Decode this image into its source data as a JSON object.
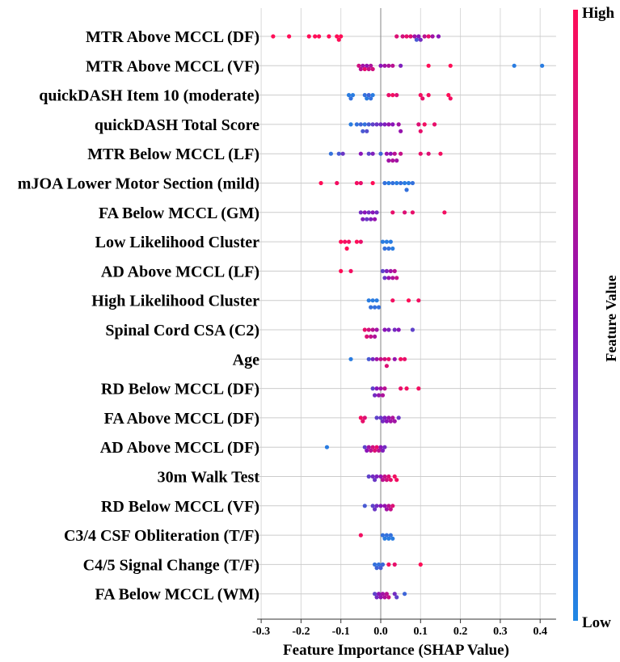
{
  "chart_data": {
    "type": "scatter",
    "subtype": "shap-beeswarm",
    "xlabel": "Feature Importance (SHAP Value)",
    "xlim": [
      -0.31,
      0.44
    ],
    "xticks": [
      -0.3,
      -0.2,
      -0.1,
      0.0,
      0.1,
      0.2,
      0.3,
      0.4
    ],
    "xtick_labels": [
      "-0.3",
      "-0.2",
      "-0.1",
      "0.0",
      "0.1",
      "0.2",
      "0.3",
      "0.4"
    ],
    "grid": true,
    "colorbar": {
      "label": "Feature Value",
      "high_label": "High",
      "low_label": "Low",
      "colors": {
        "high": "#ff0d57",
        "mid": "#8a14b8",
        "low": "#1e88e5"
      }
    },
    "features": [
      {
        "name": "MTR Above MCCL (DF)",
        "points": [
          [
            -0.27,
            1
          ],
          [
            -0.23,
            1
          ],
          [
            -0.18,
            1
          ],
          [
            -0.165,
            1
          ],
          [
            -0.155,
            1
          ],
          [
            -0.13,
            1
          ],
          [
            -0.11,
            1
          ],
          [
            -0.105,
            1
          ],
          [
            -0.1,
            1
          ],
          [
            0.04,
            0.85
          ],
          [
            0.055,
            0.8
          ],
          [
            0.065,
            0.9
          ],
          [
            0.075,
            0.85
          ],
          [
            0.085,
            0.6
          ],
          [
            0.09,
            0.2
          ],
          [
            0.095,
            0.5
          ],
          [
            0.1,
            0.4
          ],
          [
            0.11,
            0.7
          ],
          [
            0.12,
            0.9
          ],
          [
            0.13,
            0.6
          ],
          [
            0.145,
            0.5
          ]
        ]
      },
      {
        "name": "MTR Above MCCL (VF)",
        "points": [
          [
            -0.055,
            0.8
          ],
          [
            -0.05,
            0.7
          ],
          [
            -0.045,
            0.6
          ],
          [
            -0.04,
            0.9
          ],
          [
            -0.035,
            0.55
          ],
          [
            -0.03,
            0.75
          ],
          [
            -0.025,
            0.65
          ],
          [
            -0.02,
            0.8
          ],
          [
            0.0,
            0.5
          ],
          [
            0.01,
            0.6
          ],
          [
            0.02,
            0.65
          ],
          [
            0.03,
            0.7
          ],
          [
            0.05,
            0.45
          ],
          [
            0.12,
            1
          ],
          [
            0.175,
            1
          ],
          [
            0.335,
            0.05
          ],
          [
            0.405,
            0.05
          ]
        ]
      },
      {
        "name": "quickDASH Item 10 (moderate)",
        "points": [
          [
            -0.08,
            0.05
          ],
          [
            -0.075,
            0.1
          ],
          [
            -0.07,
            0.05
          ],
          [
            -0.04,
            0.1
          ],
          [
            -0.035,
            0.05
          ],
          [
            -0.03,
            0.15
          ],
          [
            -0.025,
            0.1
          ],
          [
            -0.02,
            0.05
          ],
          [
            0.02,
            0.9
          ],
          [
            0.03,
            0.95
          ],
          [
            0.04,
            0.85
          ],
          [
            0.1,
            0.95
          ],
          [
            0.105,
            0.9
          ],
          [
            0.12,
            0.95
          ],
          [
            0.17,
            1
          ],
          [
            0.175,
            0.95
          ]
        ]
      },
      {
        "name": "quickDASH Total Score",
        "points": [
          [
            -0.075,
            0.05
          ],
          [
            -0.06,
            0.1
          ],
          [
            -0.05,
            0.15
          ],
          [
            -0.045,
            0.2
          ],
          [
            -0.04,
            0.1
          ],
          [
            -0.035,
            0.25
          ],
          [
            -0.03,
            0.2
          ],
          [
            -0.02,
            0.3
          ],
          [
            -0.01,
            0.35
          ],
          [
            0.0,
            0.4
          ],
          [
            0.01,
            0.45
          ],
          [
            0.02,
            0.55
          ],
          [
            0.03,
            0.5
          ],
          [
            0.045,
            0.6
          ],
          [
            0.05,
            0.55
          ],
          [
            0.095,
            0.85
          ],
          [
            0.1,
            0.9
          ],
          [
            0.11,
            0.95
          ],
          [
            0.135,
            0.9
          ]
        ]
      },
      {
        "name": "MTR Below MCCL (LF)",
        "points": [
          [
            -0.125,
            0.1
          ],
          [
            -0.105,
            0.2
          ],
          [
            -0.095,
            0.35
          ],
          [
            -0.05,
            0.5
          ],
          [
            -0.03,
            0.3
          ],
          [
            -0.02,
            0.45
          ],
          [
            0.0,
            0.15
          ],
          [
            0.015,
            0.55
          ],
          [
            0.02,
            0.6
          ],
          [
            0.025,
            0.5
          ],
          [
            0.03,
            0.65
          ],
          [
            0.035,
            0.7
          ],
          [
            0.04,
            0.6
          ],
          [
            0.05,
            0.75
          ],
          [
            0.1,
            0.9
          ],
          [
            0.12,
            0.85
          ],
          [
            0.15,
            0.95
          ]
        ]
      },
      {
        "name": "mJOA Lower Motor Section (mild)",
        "points": [
          [
            -0.15,
            1
          ],
          [
            -0.11,
            0.95
          ],
          [
            -0.06,
            0.95
          ],
          [
            -0.05,
            0.9
          ],
          [
            -0.02,
            1
          ],
          [
            0.01,
            0.1
          ],
          [
            0.02,
            0.05
          ],
          [
            0.03,
            0.1
          ],
          [
            0.04,
            0.05
          ],
          [
            0.05,
            0.1
          ],
          [
            0.06,
            0.05
          ],
          [
            0.065,
            0.1
          ],
          [
            0.07,
            0.05
          ],
          [
            0.08,
            0.1
          ]
        ]
      },
      {
        "name": "FA Below MCCL (GM)",
        "points": [
          [
            -0.05,
            0.4
          ],
          [
            -0.045,
            0.45
          ],
          [
            -0.04,
            0.5
          ],
          [
            -0.035,
            0.35
          ],
          [
            -0.03,
            0.4
          ],
          [
            -0.025,
            0.45
          ],
          [
            -0.02,
            0.5
          ],
          [
            -0.015,
            0.55
          ],
          [
            -0.01,
            0.4
          ],
          [
            0.03,
            0.9
          ],
          [
            0.06,
            0.85
          ],
          [
            0.08,
            0.9
          ],
          [
            0.16,
            0.95
          ]
        ]
      },
      {
        "name": "Low Likelihood Cluster",
        "points": [
          [
            -0.1,
            1
          ],
          [
            -0.09,
            0.95
          ],
          [
            -0.085,
            1
          ],
          [
            -0.08,
            0.95
          ],
          [
            -0.06,
            1
          ],
          [
            -0.05,
            0.9
          ],
          [
            0.005,
            0.05
          ],
          [
            0.01,
            0.1
          ],
          [
            0.015,
            0.05
          ],
          [
            0.02,
            0.1
          ],
          [
            0.025,
            0.05
          ],
          [
            0.03,
            0.05
          ]
        ]
      },
      {
        "name": "AD Above MCCL (LF)",
        "points": [
          [
            -0.1,
            1
          ],
          [
            -0.075,
            0.95
          ],
          [
            0.005,
            0.3
          ],
          [
            0.01,
            0.35
          ],
          [
            0.015,
            0.45
          ],
          [
            0.02,
            0.55
          ],
          [
            0.025,
            0.6
          ],
          [
            0.03,
            0.65
          ],
          [
            0.035,
            0.7
          ],
          [
            0.04,
            0.75
          ]
        ]
      },
      {
        "name": "High Likelihood Cluster",
        "points": [
          [
            -0.03,
            0.05
          ],
          [
            -0.025,
            0.1
          ],
          [
            -0.02,
            0.05
          ],
          [
            -0.015,
            0.1
          ],
          [
            -0.01,
            0.05
          ],
          [
            -0.005,
            0.1
          ],
          [
            0.03,
            0.95
          ],
          [
            0.07,
            1
          ],
          [
            0.095,
            0.95
          ]
        ]
      },
      {
        "name": "Spinal Cord CSA (C2)",
        "points": [
          [
            -0.04,
            0.9
          ],
          [
            -0.035,
            0.85
          ],
          [
            -0.03,
            0.8
          ],
          [
            -0.025,
            0.75
          ],
          [
            -0.02,
            0.7
          ],
          [
            -0.015,
            0.65
          ],
          [
            -0.01,
            0.6
          ],
          [
            0.01,
            0.5
          ],
          [
            0.02,
            0.45
          ],
          [
            0.035,
            0.4
          ],
          [
            0.045,
            0.5
          ],
          [
            0.08,
            0.3
          ]
        ]
      },
      {
        "name": "Age",
        "points": [
          [
            -0.075,
            0.05
          ],
          [
            -0.03,
            0.2
          ],
          [
            -0.02,
            0.4
          ],
          [
            -0.01,
            0.6
          ],
          [
            0.0,
            0.75
          ],
          [
            0.01,
            0.8
          ],
          [
            0.015,
            0.85
          ],
          [
            0.02,
            0.9
          ],
          [
            0.035,
            0.55
          ],
          [
            0.05,
            0.95
          ],
          [
            0.06,
            0.9
          ]
        ]
      },
      {
        "name": "RD Below MCCL (DF)",
        "points": [
          [
            -0.02,
            0.3
          ],
          [
            -0.015,
            0.4
          ],
          [
            -0.01,
            0.5
          ],
          [
            -0.005,
            0.55
          ],
          [
            0.0,
            0.6
          ],
          [
            0.005,
            0.65
          ],
          [
            0.01,
            0.7
          ],
          [
            0.05,
            0.9
          ],
          [
            0.065,
            0.95
          ],
          [
            0.095,
            0.95
          ]
        ]
      },
      {
        "name": "FA Above MCCL (DF)",
        "points": [
          [
            -0.05,
            0.95
          ],
          [
            -0.045,
            0.9
          ],
          [
            -0.04,
            0.85
          ],
          [
            -0.01,
            0.3
          ],
          [
            0.0,
            0.35
          ],
          [
            0.005,
            0.4
          ],
          [
            0.01,
            0.45
          ],
          [
            0.015,
            0.5
          ],
          [
            0.02,
            0.55
          ],
          [
            0.025,
            0.6
          ],
          [
            0.03,
            0.65
          ],
          [
            0.035,
            0.6
          ],
          [
            0.045,
            0.35
          ]
        ]
      },
      {
        "name": "AD Above MCCL (DF)",
        "points": [
          [
            -0.135,
            0.05
          ],
          [
            -0.04,
            0.3
          ],
          [
            -0.035,
            0.5
          ],
          [
            -0.03,
            0.6
          ],
          [
            -0.025,
            0.7
          ],
          [
            -0.02,
            0.8
          ],
          [
            -0.015,
            0.85
          ],
          [
            -0.01,
            0.9
          ],
          [
            -0.005,
            0.7
          ],
          [
            0.0,
            0.5
          ],
          [
            0.005,
            0.45
          ],
          [
            0.01,
            0.4
          ]
        ]
      },
      {
        "name": "30m Walk Test",
        "points": [
          [
            -0.03,
            0.3
          ],
          [
            -0.02,
            0.4
          ],
          [
            -0.015,
            0.35
          ],
          [
            -0.01,
            0.45
          ],
          [
            0.0,
            0.55
          ],
          [
            0.005,
            0.7
          ],
          [
            0.01,
            0.75
          ],
          [
            0.015,
            0.8
          ],
          [
            0.02,
            0.85
          ],
          [
            0.025,
            0.9
          ],
          [
            0.035,
            0.95
          ],
          [
            0.04,
            0.95
          ]
        ]
      },
      {
        "name": "RD Below MCCL (VF)",
        "points": [
          [
            -0.04,
            0.2
          ],
          [
            -0.02,
            0.3
          ],
          [
            -0.015,
            0.35
          ],
          [
            -0.01,
            0.4
          ],
          [
            0.0,
            0.5
          ],
          [
            0.01,
            0.55
          ],
          [
            0.015,
            0.6
          ],
          [
            0.02,
            0.7
          ],
          [
            0.025,
            0.75
          ],
          [
            0.03,
            0.85
          ]
        ]
      },
      {
        "name": "C3/4 CSF Obliteration (T/F)",
        "points": [
          [
            -0.05,
            0.95
          ],
          [
            0.005,
            0.1
          ],
          [
            0.01,
            0.05
          ],
          [
            0.015,
            0.1
          ],
          [
            0.02,
            0.05
          ],
          [
            0.025,
            0.1
          ],
          [
            0.03,
            0.05
          ]
        ]
      },
      {
        "name": "C4/5 Signal Change (T/F)",
        "points": [
          [
            -0.015,
            0.1
          ],
          [
            -0.01,
            0.15
          ],
          [
            -0.005,
            0.1
          ],
          [
            0.0,
            0.2
          ],
          [
            0.005,
            0.15
          ],
          [
            0.02,
            0.95
          ],
          [
            0.035,
            0.9
          ],
          [
            0.1,
            1
          ]
        ]
      },
      {
        "name": "FA Below MCCL (WM)",
        "points": [
          [
            -0.015,
            0.3
          ],
          [
            -0.01,
            0.4
          ],
          [
            -0.005,
            0.5
          ],
          [
            0.0,
            0.55
          ],
          [
            0.005,
            0.6
          ],
          [
            0.01,
            0.65
          ],
          [
            0.015,
            0.7
          ],
          [
            0.02,
            0.75
          ],
          [
            0.035,
            0.4
          ],
          [
            0.04,
            0.3
          ],
          [
            0.06,
            0.15
          ]
        ]
      }
    ]
  }
}
